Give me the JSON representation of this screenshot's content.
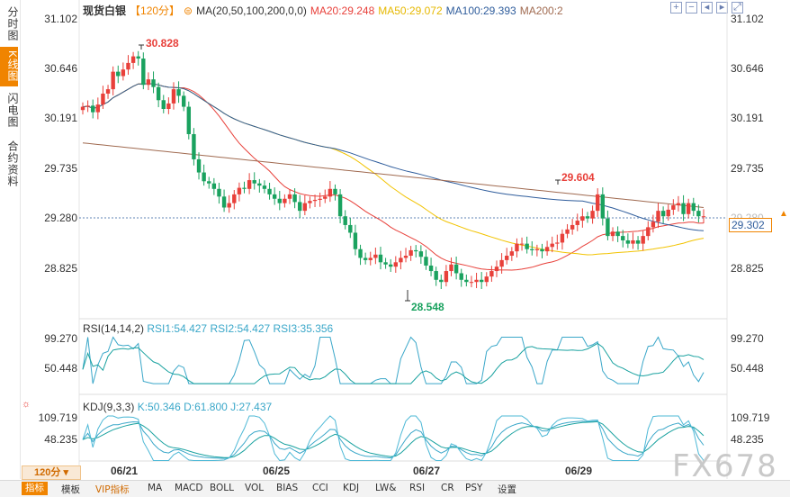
{
  "left_tabs": [
    "分时图",
    "K线图",
    "闪电图",
    "合约资料"
  ],
  "toolbar": {
    "instrument": "现货白银",
    "period": "【120分】",
    "ma_label": "MA(20,50,100,200,0,0)",
    "ma20": "MA20:29.248",
    "ma50": "MA50:29.072",
    "ma100": "MA100:29.393",
    "ma200": "MA200:2",
    "icons": [
      "plus-icon",
      "minus-icon",
      "left-arrow-icon",
      "right-arrow-icon",
      "fullscreen-icon"
    ]
  },
  "price_axis": {
    "left": [
      "31.102",
      "30.646",
      "30.191",
      "29.735",
      "29.280",
      "28.825"
    ],
    "right": [
      "31.102",
      "30.646",
      "30.191",
      "29.735",
      "29.280",
      "28.825"
    ],
    "current_price": "29.302"
  },
  "annotations": {
    "high": "30.828",
    "low": "28.548",
    "peak2": "29.604"
  },
  "rsi": {
    "label": "RSI(14,14,2)",
    "rsi1": "RSI1:54.427",
    "rsi2": "RSI2:54.427",
    "rsi3": "RSI3:35.356",
    "axis": [
      "99.270",
      "50.448"
    ]
  },
  "kdj": {
    "label": "KDJ(9,3,3)",
    "k": "K:50.346",
    "d": "D:61.800",
    "j": "J:27.437",
    "axis": [
      "109.719",
      "48.235"
    ]
  },
  "dates": [
    "06/21",
    "06/25",
    "06/27",
    "06/29"
  ],
  "period_button": "120分",
  "bottom_bar": [
    "指标",
    "模板",
    "VIP指标",
    "MA",
    "MACD",
    "BOLL",
    "VOL",
    "BIAS",
    "CCI",
    "KDJ",
    "LW&",
    "RSI",
    "CR",
    "PSY",
    "设置"
  ],
  "watermark": "FX678",
  "colors": {
    "up": "#e8403a",
    "down": "#1aa25f",
    "ma20": "#e8403a",
    "ma50": "#f2c300",
    "ma100": "#2f5d9c",
    "ma200": "#a06a50",
    "accent": "#f08400"
  },
  "chart_data": [
    {
      "type": "candlestick",
      "title": "现货白银 120分",
      "ylim": [
        28.5,
        31.102
      ],
      "annotations": [
        {
          "label": "30.828",
          "value": 30.828
        },
        {
          "label": "28.548",
          "value": 28.548
        },
        {
          "label": "29.604",
          "value": 29.604
        }
      ],
      "close_series": [
        30.3,
        30.31,
        30.25,
        30.32,
        30.42,
        30.46,
        30.62,
        30.58,
        30.64,
        30.7,
        30.76,
        30.74,
        30.5,
        30.55,
        30.48,
        30.36,
        30.28,
        30.33,
        30.46,
        30.4,
        30.3,
        30.05,
        29.82,
        29.7,
        29.62,
        29.6,
        29.55,
        29.48,
        29.38,
        29.42,
        29.5,
        29.56,
        29.55,
        29.63,
        29.6,
        29.58,
        29.55,
        29.5,
        29.46,
        29.42,
        29.46,
        29.5,
        29.43,
        29.35,
        29.42,
        29.44,
        29.45,
        29.46,
        29.48,
        29.55,
        29.5,
        29.3,
        29.22,
        29.15,
        29.0,
        28.92,
        28.9,
        28.92,
        28.95,
        28.88,
        28.86,
        28.84,
        28.88,
        28.92,
        28.94,
        28.99,
        28.98,
        28.93,
        28.85,
        28.8,
        28.72,
        28.7,
        28.8,
        28.86,
        28.78,
        28.72,
        28.7,
        28.7,
        28.72,
        28.7,
        28.75,
        28.8,
        28.84,
        28.9,
        28.94,
        28.98,
        29.05,
        29.05,
        29.0,
        28.99,
        29.0,
        28.98,
        29.02,
        29.05,
        29.06,
        29.14,
        29.18,
        29.22,
        29.26,
        29.3,
        29.28,
        29.35,
        29.5,
        29.28,
        29.12,
        29.16,
        29.12,
        29.08,
        29.05,
        29.08,
        29.05,
        29.12,
        29.2,
        29.25,
        29.35,
        29.3,
        29.36,
        29.4,
        29.42,
        29.32,
        29.42,
        29.35,
        29.3,
        29.3
      ]
    },
    {
      "type": "line",
      "title": "RSI(14,14,2)",
      "ylim": [
        25,
        100
      ],
      "series": [
        {
          "name": "RSI1",
          "values": [
            54.427
          ]
        },
        {
          "name": "RSI2",
          "values": [
            54.427
          ]
        },
        {
          "name": "RSI3",
          "values": [
            35.356
          ]
        }
      ]
    },
    {
      "type": "line",
      "title": "KDJ(9,3,3)",
      "ylim": [
        0,
        115
      ],
      "series": [
        {
          "name": "K",
          "values": [
            50.346
          ]
        },
        {
          "name": "D",
          "values": [
            61.8
          ]
        },
        {
          "name": "J",
          "values": [
            27.437
          ]
        }
      ]
    }
  ]
}
